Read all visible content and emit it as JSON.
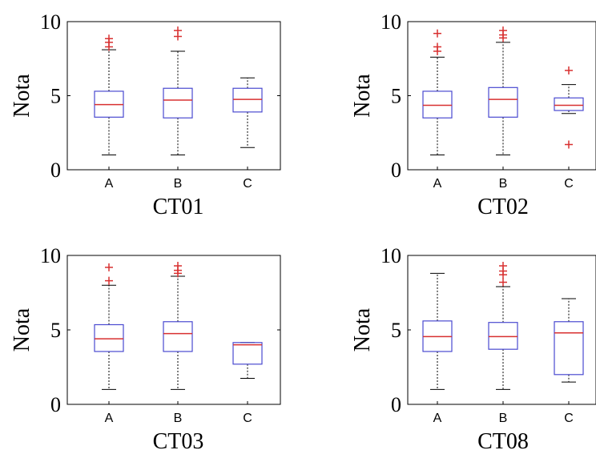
{
  "chart_data": [
    {
      "type": "box",
      "xlabel": "CT01",
      "ylabel": "Nota",
      "ylim": [
        0,
        10
      ],
      "yticks": [
        "0",
        "5",
        "10"
      ],
      "categories": [
        "A",
        "B",
        "C"
      ],
      "boxes": [
        {
          "whisker_low": 1.0,
          "q1": 3.55,
          "median": 4.4,
          "q3": 5.3,
          "whisker_high": 8.1,
          "outliers": [
            8.3,
            8.6,
            8.85
          ]
        },
        {
          "whisker_low": 1.0,
          "q1": 3.5,
          "median": 4.7,
          "q3": 5.5,
          "whisker_high": 8.0,
          "outliers": [
            9.0,
            9.4
          ]
        },
        {
          "whisker_low": 1.5,
          "q1": 3.9,
          "median": 4.75,
          "q3": 5.5,
          "whisker_high": 6.2,
          "outliers": []
        }
      ]
    },
    {
      "type": "box",
      "xlabel": "CT02",
      "ylabel": "Nota",
      "ylim": [
        0,
        10
      ],
      "yticks": [
        "0",
        "5",
        "10"
      ],
      "categories": [
        "A",
        "B",
        "C"
      ],
      "boxes": [
        {
          "whisker_low": 1.0,
          "q1": 3.5,
          "median": 4.35,
          "q3": 5.3,
          "whisker_high": 7.6,
          "outliers": [
            8.0,
            8.3,
            9.2
          ]
        },
        {
          "whisker_low": 1.0,
          "q1": 3.55,
          "median": 4.75,
          "q3": 5.55,
          "whisker_high": 8.6,
          "outliers": [
            8.9,
            9.1,
            9.4
          ]
        },
        {
          "whisker_low": 3.8,
          "q1": 4.0,
          "median": 4.35,
          "q3": 4.85,
          "whisker_high": 5.75,
          "outliers": [
            6.7,
            1.7
          ]
        }
      ]
    },
    {
      "type": "box",
      "xlabel": "CT03",
      "ylabel": "Nota",
      "ylim": [
        0,
        10
      ],
      "yticks": [
        "0",
        "5",
        "10"
      ],
      "categories": [
        "A",
        "B",
        "C"
      ],
      "boxes": [
        {
          "whisker_low": 1.0,
          "q1": 3.55,
          "median": 4.4,
          "q3": 5.35,
          "whisker_high": 8.0,
          "outliers": [
            8.3,
            9.2
          ]
        },
        {
          "whisker_low": 1.0,
          "q1": 3.55,
          "median": 4.75,
          "q3": 5.55,
          "whisker_high": 8.6,
          "outliers": [
            8.8,
            9.0,
            9.3
          ]
        },
        {
          "whisker_low": 1.75,
          "q1": 2.7,
          "median": 4.0,
          "q3": 4.15,
          "whisker_high": 4.15,
          "outliers": []
        }
      ]
    },
    {
      "type": "box",
      "xlabel": "CT08",
      "ylabel": "Nota",
      "ylim": [
        0,
        10
      ],
      "yticks": [
        "0",
        "5",
        "10"
      ],
      "categories": [
        "A",
        "B",
        "C"
      ],
      "boxes": [
        {
          "whisker_low": 1.0,
          "q1": 3.55,
          "median": 4.55,
          "q3": 5.6,
          "whisker_high": 8.8,
          "outliers": []
        },
        {
          "whisker_low": 1.0,
          "q1": 3.7,
          "median": 4.55,
          "q3": 5.5,
          "whisker_high": 7.9,
          "outliers": [
            8.2,
            8.7,
            8.95,
            9.3
          ]
        },
        {
          "whisker_low": 1.5,
          "q1": 2.0,
          "median": 4.8,
          "q3": 5.55,
          "whisker_high": 7.1,
          "outliers": []
        }
      ]
    }
  ],
  "colors": {
    "box": "#4a4ad0",
    "median": "#d83030",
    "outlier": "#d83030",
    "whisker": "#000000",
    "axes": "#000000"
  }
}
